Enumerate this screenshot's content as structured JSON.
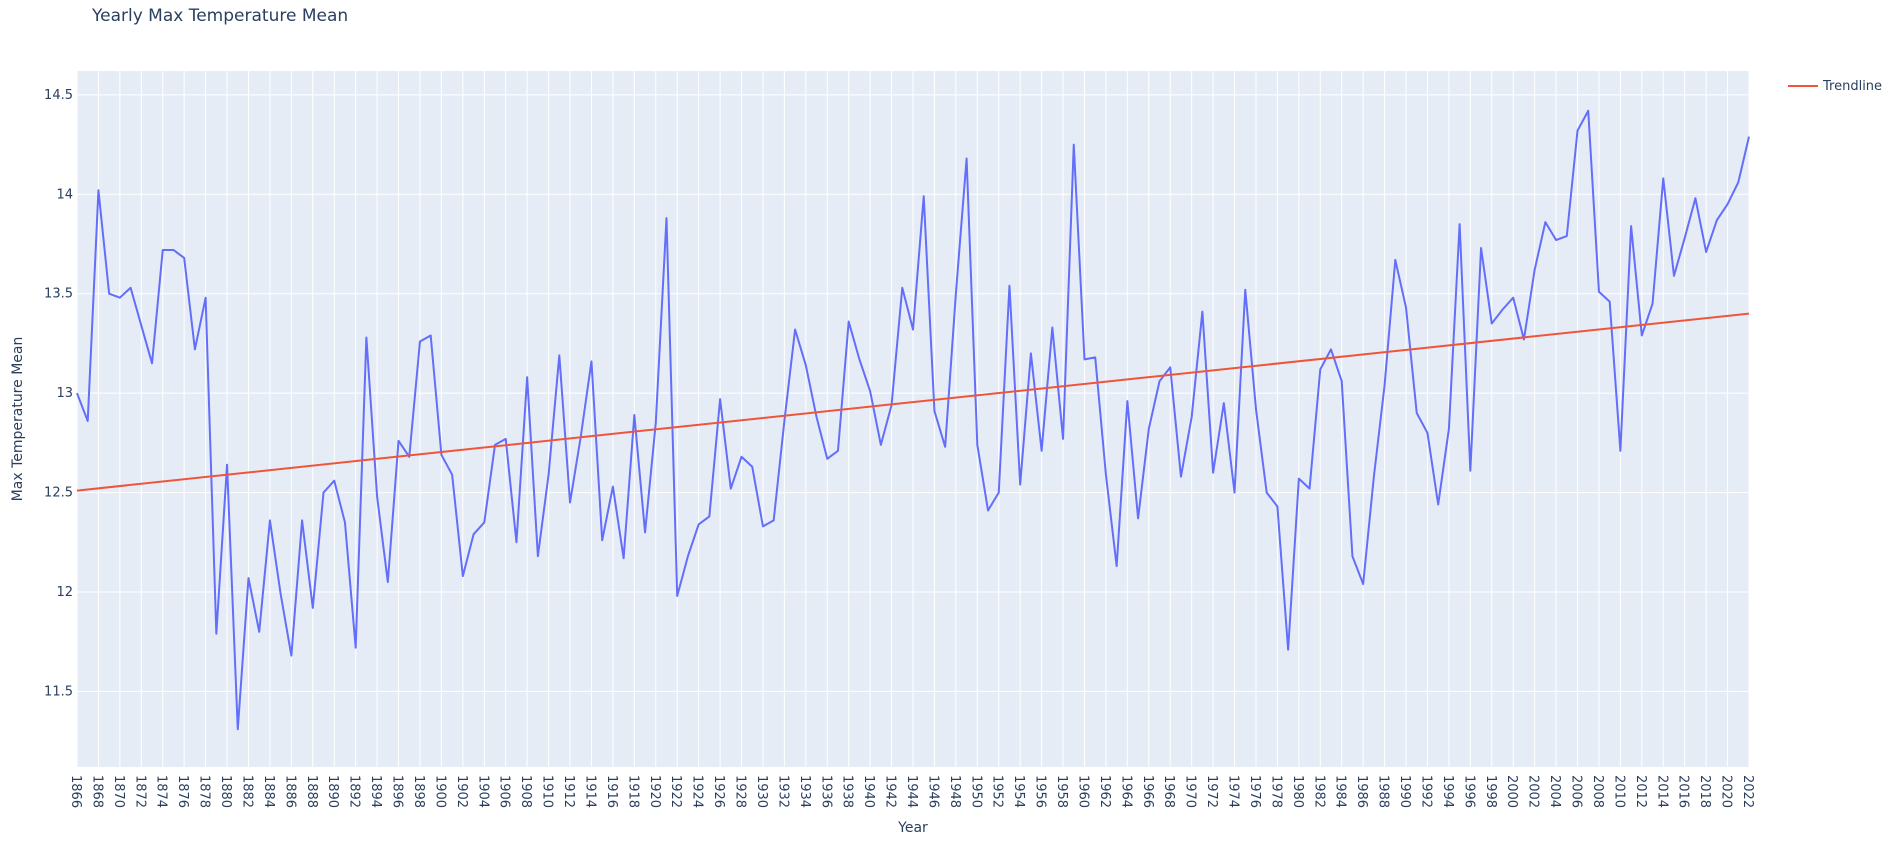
{
  "chart_data": {
    "type": "line",
    "title": "Yearly Max Temperature Mean",
    "xlabel": "Year",
    "ylabel": "Max Temperature Mean",
    "xlim": [
      1866,
      2022
    ],
    "ylim": [
      11.12,
      14.62
    ],
    "x_tick_step": 2,
    "y_ticks": [
      11.5,
      12,
      12.5,
      13,
      13.5,
      14,
      14.5
    ],
    "y_tick_labels": [
      "11.5",
      "12",
      "12.5",
      "13",
      "13.5",
      "14",
      "14.5"
    ],
    "grid": true,
    "legend_position": "top-right",
    "series": [
      {
        "name": "",
        "color": "#636efa",
        "start_year": 1866,
        "values": [
          13.0,
          12.86,
          14.02,
          13.5,
          13.48,
          13.53,
          13.34,
          13.15,
          13.72,
          13.72,
          13.68,
          13.22,
          13.48,
          11.79,
          12.64,
          11.31,
          12.07,
          11.8,
          12.36,
          11.99,
          11.68,
          12.36,
          11.92,
          12.5,
          12.56,
          12.35,
          11.72,
          13.28,
          12.48,
          12.05,
          12.76,
          12.68,
          13.26,
          13.29,
          12.69,
          12.59,
          12.08,
          12.29,
          12.35,
          12.74,
          12.77,
          12.25,
          13.08,
          12.18,
          12.59,
          13.19,
          12.45,
          12.78,
          13.16,
          12.26,
          12.53,
          12.17,
          12.89,
          12.3,
          12.85,
          13.88,
          11.98,
          12.18,
          12.34,
          12.38,
          12.97,
          12.52,
          12.68,
          12.63,
          12.33,
          12.36,
          12.86,
          13.32,
          13.14,
          12.88,
          12.67,
          12.71,
          13.36,
          13.17,
          13.01,
          12.74,
          12.94,
          13.53,
          13.32,
          13.99,
          12.91,
          12.73,
          13.5,
          14.18,
          12.74,
          12.41,
          12.5,
          13.54,
          12.54,
          13.2,
          12.71,
          13.33,
          12.77,
          14.25,
          13.17,
          13.18,
          12.59,
          12.13,
          12.96,
          12.37,
          12.82,
          13.06,
          13.13,
          12.58,
          12.88,
          13.41,
          12.6,
          12.95,
          12.5,
          13.52,
          12.92,
          12.5,
          12.43,
          11.71,
          12.57,
          12.52,
          13.12,
          13.22,
          13.06,
          12.18,
          12.04,
          12.58,
          13.04,
          13.67,
          13.43,
          12.9,
          12.8,
          12.44,
          12.82,
          13.85,
          12.61,
          13.73,
          13.35,
          13.42,
          13.48,
          13.27,
          13.62,
          13.86,
          13.77,
          13.79,
          14.32,
          14.42,
          13.51,
          13.46,
          12.71,
          13.84,
          13.29,
          13.45,
          14.08,
          13.59,
          13.78,
          13.98,
          13.71,
          13.87,
          13.95,
          14.06,
          14.29
        ]
      },
      {
        "name": "Trendline",
        "color": "#ef553b",
        "x": [
          1866,
          2022
        ],
        "values": [
          12.51,
          13.4
        ]
      }
    ]
  }
}
